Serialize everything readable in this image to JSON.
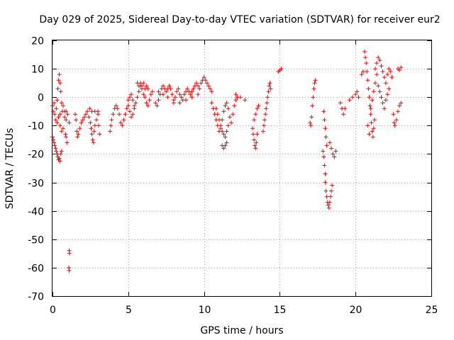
{
  "chart_data": {
    "type": "scatter",
    "title": "Day 029 of 2025, Sidereal Day-to-day VTEC variation (SDTVAR) for receiver eur2",
    "xlabel": "GPS time / hours",
    "ylabel": "SDTVAR / TECUs",
    "xlim": [
      0,
      25
    ],
    "ylim": [
      -70,
      20
    ],
    "xticks": [
      0,
      5,
      10,
      15,
      20,
      25
    ],
    "xtick_labels": [
      "0",
      "5",
      "10",
      "15",
      "20",
      "25"
    ],
    "yticks": [
      -70,
      -60,
      -50,
      -40,
      -30,
      -20,
      -10,
      0,
      10,
      20
    ],
    "ytick_labels": [
      "-70",
      "-60",
      "-50",
      "-40",
      "-30",
      "-20",
      "-10",
      "0",
      "10",
      "20"
    ],
    "grid": true,
    "marker": "+",
    "color": "#ff0000",
    "series": [
      {
        "name": "SDTVAR",
        "points": [
          [
            0.0,
            -3
          ],
          [
            0.05,
            -5
          ],
          [
            0.1,
            -2
          ],
          [
            0.15,
            -6
          ],
          [
            0.2,
            -8
          ],
          [
            0.25,
            -4
          ],
          [
            0.3,
            -1
          ],
          [
            0.35,
            3
          ],
          [
            0.4,
            6
          ],
          [
            0.45,
            8
          ],
          [
            0.5,
            5
          ],
          [
            0.55,
            2
          ],
          [
            0.6,
            -2
          ],
          [
            0.65,
            -5
          ],
          [
            0.0,
            -14
          ],
          [
            0.05,
            -15
          ],
          [
            0.1,
            -16
          ],
          [
            0.15,
            -17
          ],
          [
            0.2,
            -18
          ],
          [
            0.25,
            -19
          ],
          [
            0.3,
            -20
          ],
          [
            0.35,
            -21
          ],
          [
            0.4,
            -22
          ],
          [
            0.45,
            -21.5
          ],
          [
            0.5,
            -22.5
          ],
          [
            0.55,
            -20
          ],
          [
            0.6,
            -19
          ],
          [
            0.3,
            -9
          ],
          [
            0.4,
            -7
          ],
          [
            0.5,
            -10
          ],
          [
            0.6,
            -12
          ],
          [
            0.7,
            -11
          ],
          [
            0.8,
            -7
          ],
          [
            0.9,
            -5
          ],
          [
            1.0,
            -6
          ],
          [
            1.1,
            -9
          ],
          [
            0.7,
            -3
          ],
          [
            0.8,
            -5
          ],
          [
            0.9,
            -8
          ],
          [
            0.5,
            -6
          ],
          [
            0.85,
            -13
          ],
          [
            0.9,
            -14
          ],
          [
            0.95,
            -16
          ],
          [
            1.1,
            -54
          ],
          [
            1.12,
            -55
          ],
          [
            1.08,
            -60
          ],
          [
            1.1,
            -61
          ],
          [
            1.5,
            -6
          ],
          [
            1.55,
            -8
          ],
          [
            1.6,
            -12
          ],
          [
            1.65,
            -14
          ],
          [
            1.7,
            -13
          ],
          [
            1.8,
            -11
          ],
          [
            1.9,
            -9
          ],
          [
            2.0,
            -8
          ],
          [
            2.1,
            -7
          ],
          [
            2.2,
            -6
          ],
          [
            2.3,
            -5
          ],
          [
            2.4,
            -7
          ],
          [
            2.5,
            -9
          ],
          [
            2.55,
            -11
          ],
          [
            2.6,
            -13
          ],
          [
            2.65,
            -15
          ],
          [
            2.7,
            -16
          ],
          [
            2.75,
            -12
          ],
          [
            2.8,
            -10
          ],
          [
            2.9,
            -8
          ],
          [
            3.0,
            -6
          ],
          [
            3.05,
            -10
          ],
          [
            3.1,
            -13
          ],
          [
            2.45,
            -4
          ],
          [
            2.6,
            -5
          ],
          [
            2.8,
            -5
          ],
          [
            3.0,
            -5
          ],
          [
            3.8,
            -12
          ],
          [
            3.85,
            -10
          ],
          [
            3.9,
            -8
          ],
          [
            4.0,
            -6
          ],
          [
            4.1,
            -4
          ],
          [
            4.2,
            -3
          ],
          [
            4.3,
            -4
          ],
          [
            4.4,
            -6
          ],
          [
            4.5,
            -9
          ],
          [
            4.6,
            -10
          ],
          [
            4.7,
            -8
          ],
          [
            4.8,
            -6
          ],
          [
            4.9,
            -4
          ],
          [
            5.0,
            -3
          ],
          [
            5.1,
            -5
          ],
          [
            5.2,
            -7
          ],
          [
            5.3,
            -6
          ],
          [
            5.4,
            -4
          ],
          [
            5.0,
            -1
          ],
          [
            5.1,
            0
          ],
          [
            5.2,
            1
          ],
          [
            5.3,
            -1
          ],
          [
            5.4,
            -3
          ],
          [
            5.5,
            -2
          ],
          [
            5.6,
            0
          ],
          [
            5.7,
            2
          ],
          [
            5.8,
            4
          ],
          [
            5.9,
            3
          ],
          [
            6.0,
            1
          ],
          [
            6.1,
            0
          ],
          [
            6.2,
            -2
          ],
          [
            6.3,
            -3
          ],
          [
            6.4,
            -1
          ],
          [
            6.5,
            1
          ],
          [
            6.6,
            2
          ],
          [
            5.6,
            5
          ],
          [
            5.7,
            4
          ],
          [
            5.8,
            5
          ],
          [
            5.9,
            4
          ],
          [
            6.0,
            5
          ],
          [
            6.1,
            3
          ],
          [
            6.2,
            4
          ],
          [
            6.3,
            3
          ],
          [
            6.8,
            -2
          ],
          [
            6.9,
            -3
          ],
          [
            7.0,
            -1
          ],
          [
            7.1,
            1
          ],
          [
            7.2,
            3
          ],
          [
            7.3,
            4
          ],
          [
            7.4,
            3
          ],
          [
            7.5,
            2
          ],
          [
            7.6,
            3
          ],
          [
            7.7,
            4
          ],
          [
            7.8,
            3
          ],
          [
            7.9,
            1
          ],
          [
            8.0,
            -1
          ],
          [
            8.1,
            0
          ],
          [
            8.2,
            2
          ],
          [
            8.3,
            3
          ],
          [
            8.4,
            1
          ],
          [
            8.5,
            0
          ],
          [
            8.6,
            -1
          ],
          [
            8.7,
            1
          ],
          [
            8.8,
            2
          ],
          [
            8.9,
            3
          ],
          [
            9.0,
            2
          ],
          [
            9.1,
            1
          ],
          [
            9.2,
            2
          ],
          [
            9.3,
            3
          ],
          [
            9.4,
            4
          ],
          [
            9.5,
            5
          ],
          [
            9.6,
            4
          ],
          [
            9.7,
            3
          ],
          [
            9.8,
            5
          ],
          [
            9.9,
            6
          ],
          [
            10.0,
            7
          ],
          [
            10.1,
            6
          ],
          [
            10.2,
            5
          ],
          [
            10.3,
            4
          ],
          [
            10.4,
            3
          ],
          [
            10.5,
            2
          ],
          [
            7.0,
            2
          ],
          [
            7.3,
            1
          ],
          [
            7.6,
            0
          ],
          [
            8.0,
            -2
          ],
          [
            8.4,
            -2
          ],
          [
            8.8,
            -1
          ],
          [
            9.2,
            0
          ],
          [
            9.6,
            1
          ],
          [
            10.5,
            -2
          ],
          [
            10.6,
            -4
          ],
          [
            10.7,
            -6
          ],
          [
            10.8,
            -8
          ],
          [
            10.9,
            -10
          ],
          [
            11.0,
            -12
          ],
          [
            11.1,
            -11
          ],
          [
            11.2,
            -8
          ],
          [
            11.3,
            -5
          ],
          [
            11.4,
            -3
          ],
          [
            11.5,
            -2
          ],
          [
            11.6,
            -4
          ],
          [
            11.7,
            -7
          ],
          [
            11.8,
            -9
          ],
          [
            11.9,
            -6
          ],
          [
            12.0,
            -3
          ],
          [
            12.1,
            -1
          ],
          [
            12.2,
            0
          ],
          [
            10.8,
            -4
          ],
          [
            10.9,
            -6
          ],
          [
            11.0,
            -8
          ],
          [
            11.1,
            -10
          ],
          [
            11.2,
            -12
          ],
          [
            11.3,
            -13
          ],
          [
            11.4,
            -14
          ],
          [
            11.5,
            -12
          ],
          [
            11.6,
            -10
          ],
          [
            11.2,
            -17
          ],
          [
            11.3,
            -18
          ],
          [
            11.4,
            -17
          ],
          [
            11.5,
            -16
          ],
          [
            12.1,
            1
          ],
          [
            12.4,
            0
          ],
          [
            12.7,
            -1
          ],
          [
            13.2,
            -11
          ],
          [
            13.25,
            -13
          ],
          [
            13.3,
            -15
          ],
          [
            13.35,
            -17
          ],
          [
            13.4,
            -18
          ],
          [
            13.45,
            -16
          ],
          [
            13.5,
            -13
          ],
          [
            13.3,
            -8
          ],
          [
            13.4,
            -6
          ],
          [
            13.5,
            -4
          ],
          [
            13.6,
            -3
          ],
          [
            13.9,
            -12
          ],
          [
            13.95,
            -10
          ],
          [
            14.0,
            -8
          ],
          [
            14.05,
            -6
          ],
          [
            14.1,
            -4
          ],
          [
            14.15,
            -2
          ],
          [
            14.2,
            0
          ],
          [
            14.25,
            2
          ],
          [
            14.3,
            4
          ],
          [
            14.35,
            5
          ],
          [
            14.4,
            3
          ],
          [
            14.9,
            9
          ],
          [
            15.0,
            9.5
          ],
          [
            15.1,
            10
          ],
          [
            17.0,
            -9
          ],
          [
            17.05,
            -10
          ],
          [
            17.1,
            -7
          ],
          [
            17.15,
            -3
          ],
          [
            17.2,
            0
          ],
          [
            17.25,
            3
          ],
          [
            17.3,
            5
          ],
          [
            17.35,
            6
          ],
          [
            17.9,
            -5
          ],
          [
            17.95,
            -8
          ],
          [
            18.0,
            -11
          ],
          [
            18.05,
            -14
          ],
          [
            18.1,
            -17
          ],
          [
            17.85,
            -19
          ],
          [
            17.9,
            -21
          ],
          [
            17.95,
            -24
          ],
          [
            18.0,
            -27
          ],
          [
            18.0,
            -30
          ],
          [
            18.05,
            -33
          ],
          [
            18.1,
            -35
          ],
          [
            18.15,
            -37
          ],
          [
            18.2,
            -38
          ],
          [
            18.25,
            -39
          ],
          [
            18.3,
            -37
          ],
          [
            18.35,
            -35
          ],
          [
            18.4,
            -33
          ],
          [
            18.45,
            -31
          ],
          [
            18.3,
            -16
          ],
          [
            18.4,
            -18
          ],
          [
            18.5,
            -20
          ],
          [
            18.6,
            -21
          ],
          [
            18.7,
            -19
          ],
          [
            19.0,
            -2
          ],
          [
            19.1,
            -4
          ],
          [
            19.2,
            -6
          ],
          [
            19.3,
            -4
          ],
          [
            19.6,
            -1
          ],
          [
            19.8,
            0
          ],
          [
            20.0,
            1
          ],
          [
            20.1,
            2
          ],
          [
            20.2,
            0
          ],
          [
            20.4,
            8
          ],
          [
            20.5,
            9
          ],
          [
            20.6,
            16
          ],
          [
            20.65,
            14
          ],
          [
            20.7,
            12
          ],
          [
            20.75,
            9
          ],
          [
            20.8,
            6
          ],
          [
            20.85,
            3
          ],
          [
            20.9,
            0
          ],
          [
            20.95,
            -3
          ],
          [
            21.0,
            -6
          ],
          [
            21.05,
            -9
          ],
          [
            21.1,
            -12
          ],
          [
            21.15,
            -14
          ],
          [
            21.2,
            -11
          ],
          [
            21.25,
            -8
          ],
          [
            20.8,
            -10
          ],
          [
            20.9,
            -13
          ],
          [
            21.0,
            -4
          ],
          [
            21.1,
            -1
          ],
          [
            21.2,
            2
          ],
          [
            21.3,
            5
          ],
          [
            21.4,
            8
          ],
          [
            21.3,
            10
          ],
          [
            21.4,
            12
          ],
          [
            21.5,
            14
          ],
          [
            21.6,
            13
          ],
          [
            21.7,
            11
          ],
          [
            21.8,
            9
          ],
          [
            21.9,
            7
          ],
          [
            22.0,
            5
          ],
          [
            22.1,
            8
          ],
          [
            22.2,
            10
          ],
          [
            22.3,
            9
          ],
          [
            22.4,
            7
          ],
          [
            21.5,
            4
          ],
          [
            21.6,
            2
          ],
          [
            21.7,
            0
          ],
          [
            21.8,
            -2
          ],
          [
            21.9,
            -4
          ],
          [
            22.0,
            -1
          ],
          [
            22.1,
            1
          ],
          [
            22.2,
            3
          ],
          [
            22.5,
            -6
          ],
          [
            22.55,
            -9
          ],
          [
            22.6,
            -10
          ],
          [
            22.7,
            -8
          ],
          [
            22.8,
            -5
          ],
          [
            22.9,
            -3
          ],
          [
            23.0,
            -2
          ],
          [
            22.8,
            10
          ],
          [
            22.9,
            9.5
          ],
          [
            23.0,
            10.5
          ]
        ]
      }
    ]
  }
}
